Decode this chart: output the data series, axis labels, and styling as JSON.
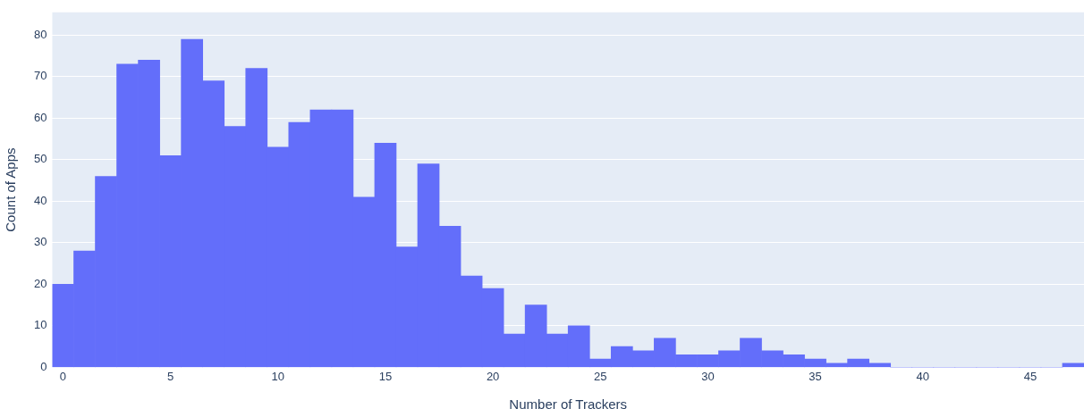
{
  "chart_data": {
    "type": "histogram",
    "xlabel": "Number of Trackers",
    "ylabel": "Count of Apps",
    "bins": [
      -0.5,
      0.5,
      1.5,
      2.5,
      3.5,
      4.5,
      5.5,
      6.5,
      7.5,
      8.5,
      9.5,
      10.5,
      11.5,
      12.5,
      13.5,
      14.5,
      15.5,
      16.5,
      17.5,
      18.5,
      19.5,
      20.5,
      21.5,
      22.5,
      23.5,
      24.5,
      25.5,
      26.5,
      27.5,
      28.5,
      29.5,
      30.5,
      31.5,
      32.5,
      33.5,
      34.5,
      35.5,
      36.5,
      37.5,
      38.5,
      39.5,
      40.5,
      41.5,
      42.5,
      43.5,
      44.5,
      45.5,
      46.5,
      47.5
    ],
    "values": [
      20,
      28,
      46,
      73,
      74,
      51,
      79,
      69,
      58,
      72,
      53,
      59,
      62,
      62,
      41,
      54,
      29,
      49,
      34,
      22,
      19,
      8,
      15,
      8,
      10,
      2,
      5,
      4,
      7,
      3,
      3,
      4,
      7,
      4,
      3,
      2,
      1,
      2,
      1,
      0,
      0,
      0,
      0,
      0,
      0,
      0,
      0,
      1
    ],
    "color": "#636efa",
    "xlim": [
      -0.5,
      47.5
    ],
    "xticks": [
      0,
      5,
      10,
      15,
      20,
      25,
      30,
      35,
      40,
      45
    ],
    "ylim": [
      0,
      85.5
    ],
    "yticks": [
      0,
      10,
      20,
      30,
      40,
      50,
      60,
      70,
      80
    ],
    "grid": "y",
    "legend": false
  }
}
